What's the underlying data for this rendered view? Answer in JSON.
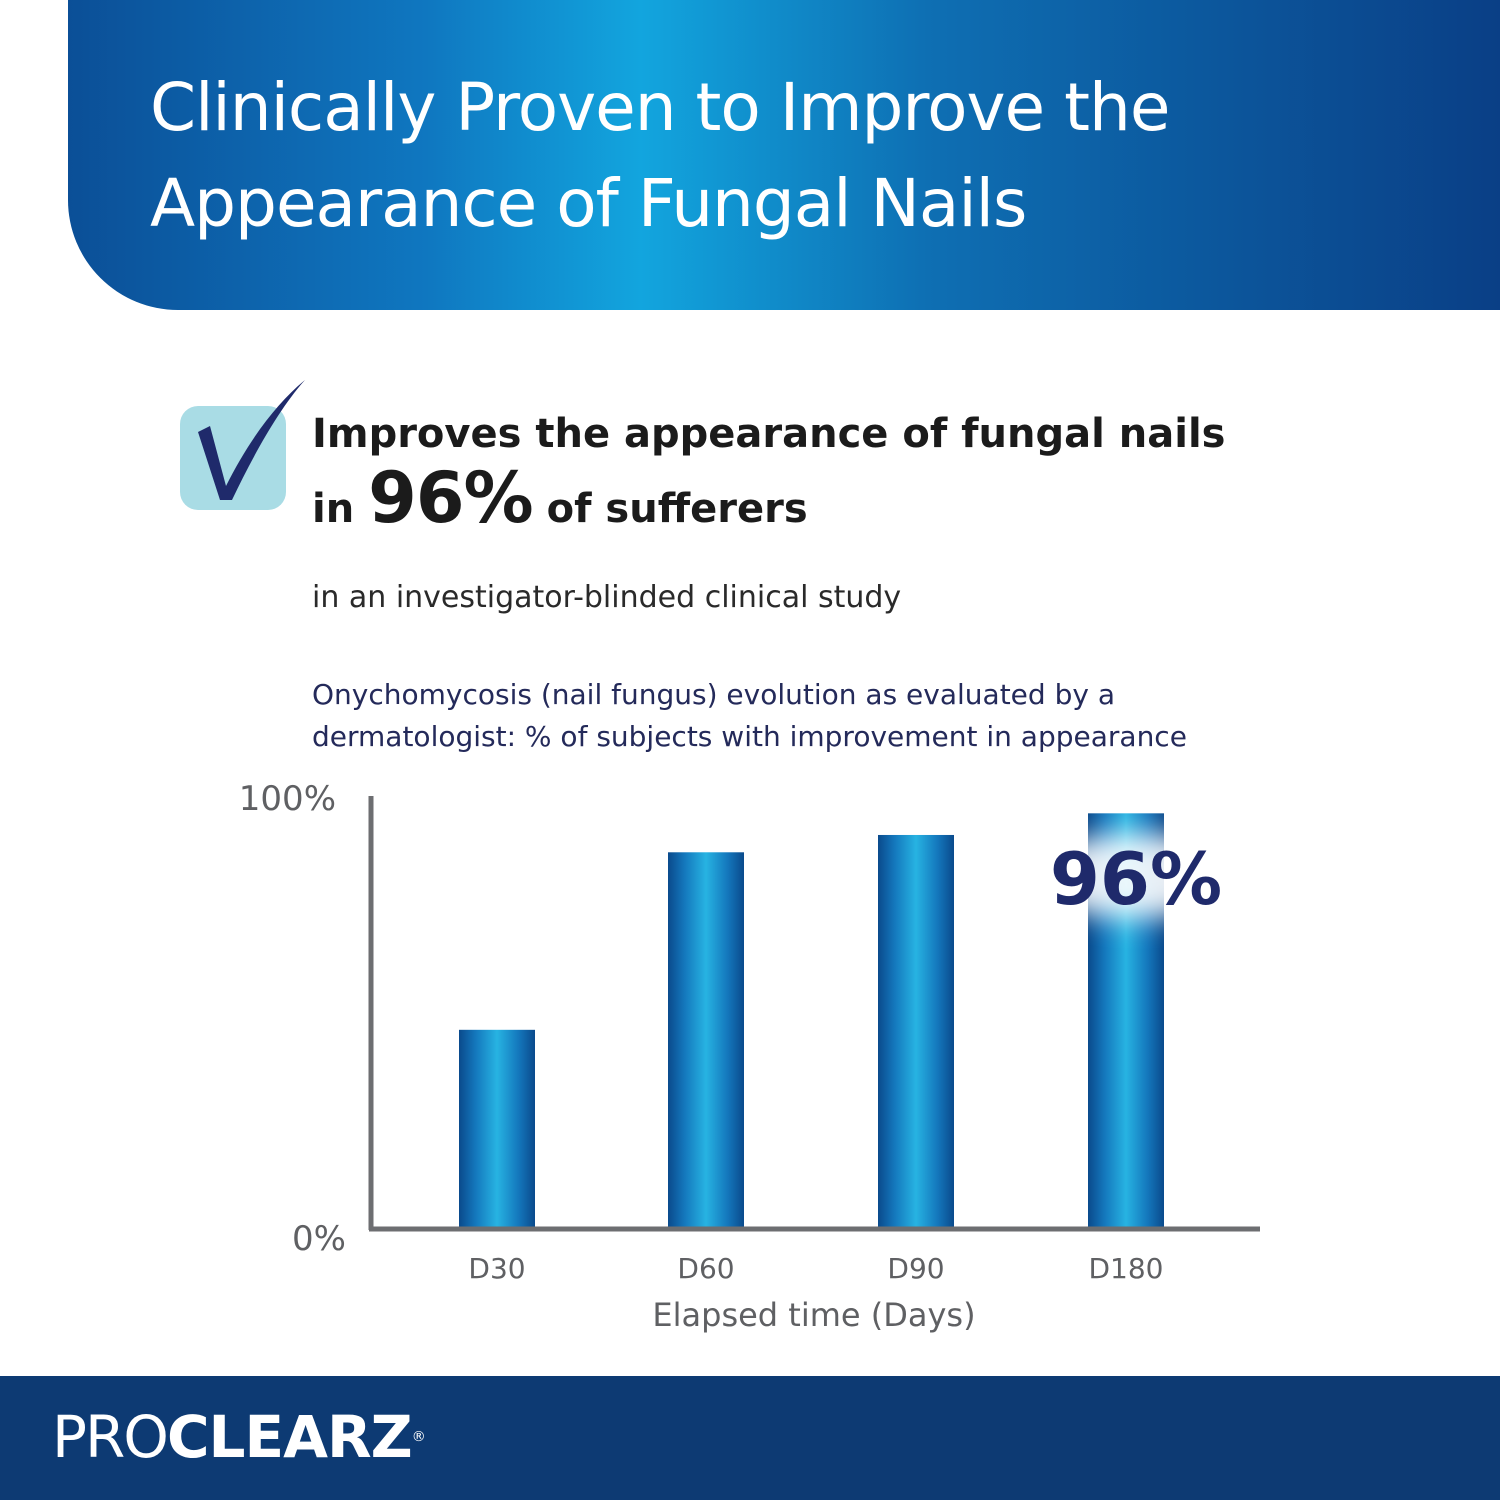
{
  "banner": {
    "title_line1": "Clinically Proven to Improve the",
    "title_line2": "Appearance of Fungal Nails"
  },
  "claim": {
    "line1": "Improves the appearance of fungal nails",
    "line2_prefix": "in",
    "line2_big": "96%",
    "line2_suffix": "of sufferers",
    "study_note": "in an investigator-blinded clinical study"
  },
  "colors": {
    "banner_blue": "#0f77c0",
    "footer_navy": "#0d3a73",
    "check_navy": "#1f2a6b",
    "check_box": "#a9dce5"
  },
  "icons": {
    "check": "checkmark-icon"
  },
  "chart_data": {
    "type": "bar",
    "title_line1": "Onychomycosis (nail fungus) evolution as evaluated by a",
    "title_line2": "dermatologist: % of subjects with improvement in appearance",
    "categories": [
      "D30",
      "D60",
      "D90",
      "D180"
    ],
    "values": [
      46,
      87,
      91,
      96
    ],
    "ytick_labels": [
      "0%",
      "100%"
    ],
    "ylim": [
      0,
      100
    ],
    "xlabel": "Elapsed time (Days)",
    "annotation": {
      "category": "D180",
      "text": "96%"
    },
    "grid": false,
    "legend": "none"
  },
  "footer": {
    "brand_light": "PRO",
    "brand_bold": "CLEARZ",
    "brand_mark": "®"
  }
}
